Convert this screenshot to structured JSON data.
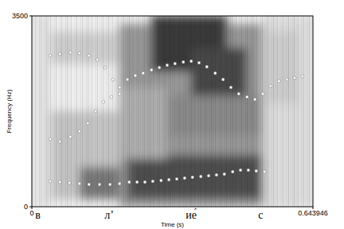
{
  "chart_data": {
    "type": "scatter",
    "xlabel": "Time (s)",
    "ylabel": "Frequency (Hz)",
    "xlim": [
      0,
      0.643946
    ],
    "ylim": [
      0,
      3500
    ],
    "xticks": [
      0,
      0.643946
    ],
    "yticks": [
      0,
      3500
    ],
    "grid": false,
    "marker": "circle",
    "annotations": [
      {
        "text": "в",
        "x": 0.014
      },
      {
        "text": "л’",
        "x": 0.177
      },
      {
        "text": "ие́",
        "x": 0.365
      },
      {
        "text": "с",
        "x": 0.524
      }
    ],
    "series": [
      {
        "color": "#ffffff",
        "x": [
          0.042,
          0.064,
          0.086,
          0.109,
          0.131,
          0.155,
          0.179,
          0.201,
          0.223,
          0.241,
          0.259,
          0.277,
          0.296,
          0.314,
          0.332,
          0.35,
          0.368,
          0.387,
          0.405,
          0.423,
          0.441,
          0.46,
          0.478,
          0.496,
          0.514,
          0.533
        ],
        "values": [
          467,
          452,
          438,
          423,
          408,
          408,
          408,
          423,
          452,
          452,
          452,
          467,
          481,
          496,
          510,
          525,
          540,
          554,
          569,
          583,
          598,
          642,
          671,
          671,
          656,
          642
        ]
      },
      {
        "color": "#ffffff",
        "x": [
          0.042,
          0.064,
          0.088,
          0.109,
          0.128,
          0.146,
          0.164,
          0.182,
          0.201,
          0.219,
          0.237,
          0.255,
          0.274,
          0.292,
          0.31,
          0.328,
          0.347,
          0.365,
          0.383,
          0.401,
          0.42,
          0.438,
          0.456,
          0.474,
          0.493,
          0.511,
          0.529,
          0.547,
          0.566,
          0.584,
          0.602,
          0.62
        ],
        "values": [
          1240,
          1196,
          1283,
          1385,
          1531,
          1750,
          1925,
          2013,
          2071,
          2333,
          2406,
          2450,
          2508,
          2552,
          2596,
          2625,
          2654,
          2669,
          2640,
          2567,
          2450,
          2333,
          2188,
          2071,
          2013,
          1969,
          2071,
          2217,
          2304,
          2333,
          2363,
          2392
        ]
      },
      {
        "color": "#ffffff",
        "x": [
          0.042,
          0.064,
          0.088,
          0.109,
          0.131,
          0.15,
          0.168,
          0.186,
          0.201
        ],
        "values": [
          2771,
          2800,
          2829,
          2815,
          2771,
          2698,
          2552,
          2333,
          2188
        ]
      }
    ]
  }
}
